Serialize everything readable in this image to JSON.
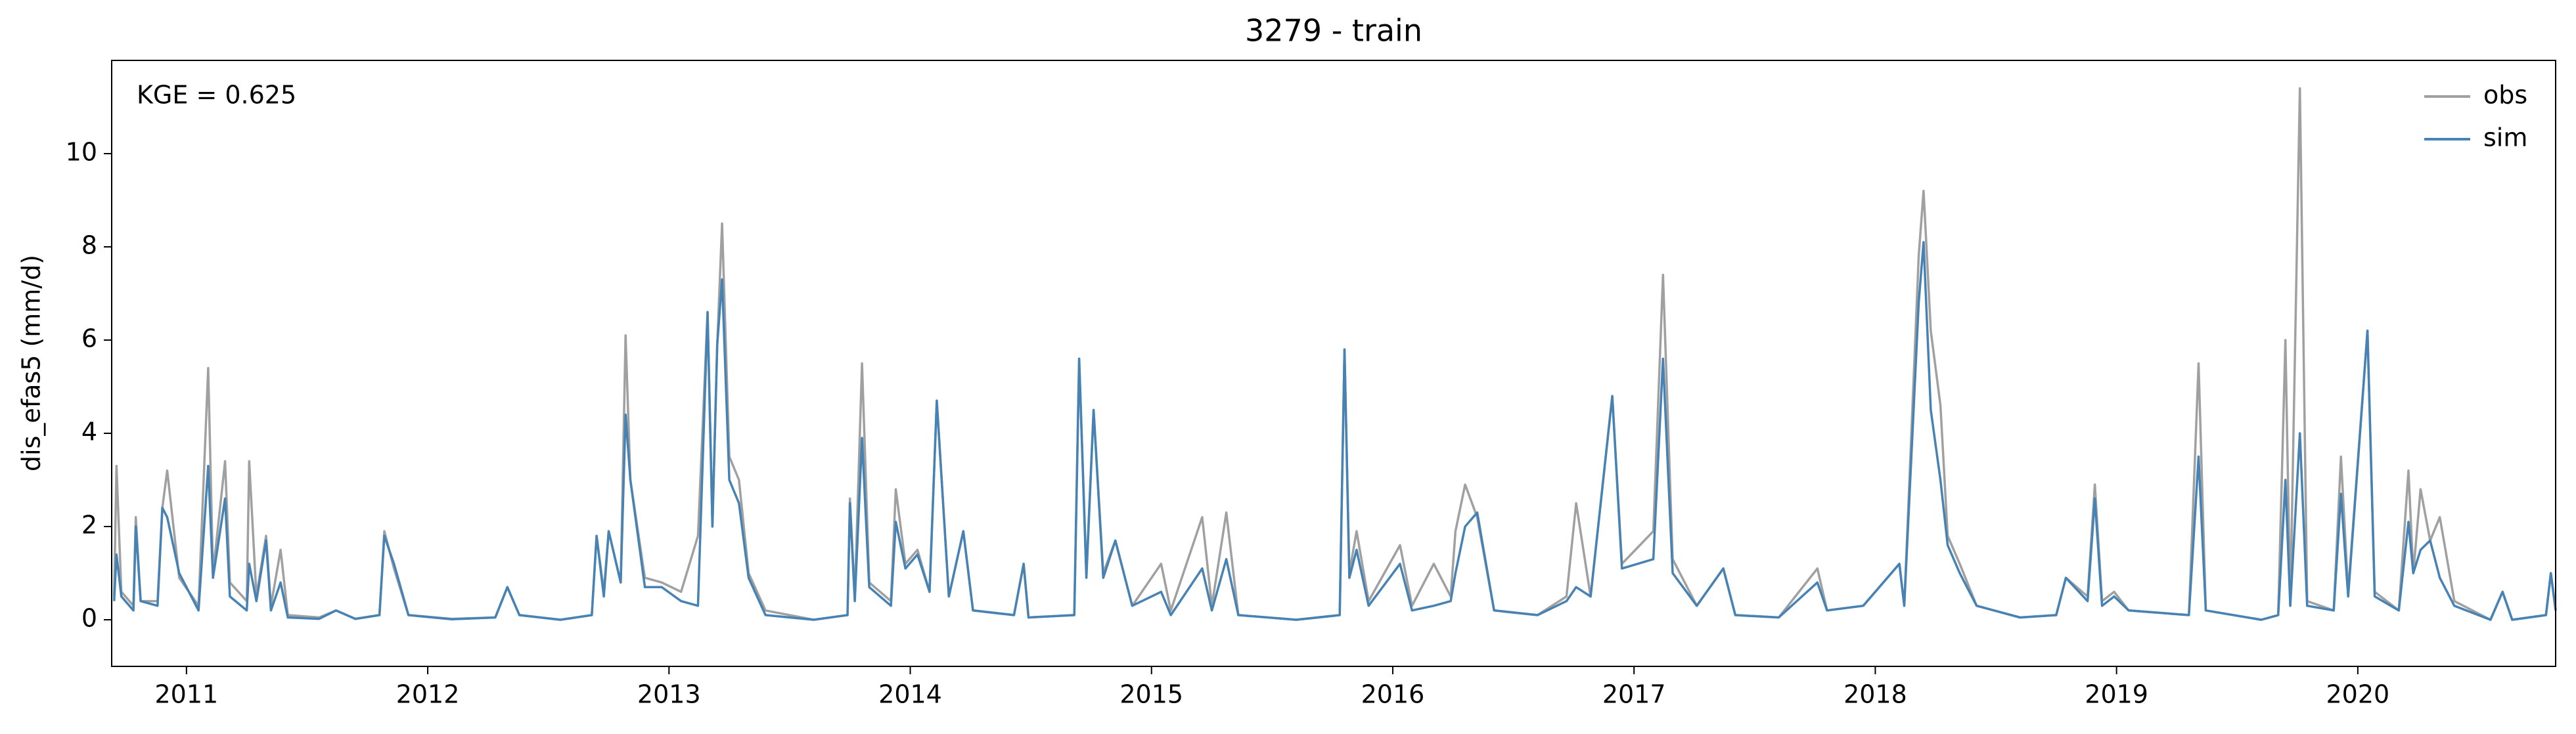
{
  "chart_data": {
    "type": "line",
    "title": "3279 - train",
    "ylabel": "dis_efas5 (mm/d)",
    "annotation": "KGE = 0.625",
    "legend": "upper right",
    "xlim": [
      2010.69,
      2020.82
    ],
    "ylim": [
      -1,
      12
    ],
    "xticks": [
      2011,
      2012,
      2013,
      2014,
      2015,
      2016,
      2017,
      2018,
      2019,
      2020
    ],
    "yticks": [
      0,
      2,
      4,
      6,
      8,
      10
    ],
    "x": [
      2010.7,
      2010.71,
      2010.73,
      2010.78,
      2010.79,
      2010.81,
      2010.88,
      2010.9,
      2010.92,
      2010.97,
      2011.05,
      2011.09,
      2011.11,
      2011.16,
      2011.18,
      2011.25,
      2011.26,
      2011.29,
      2011.33,
      2011.35,
      2011.39,
      2011.42,
      2011.55,
      2011.62,
      2011.7,
      2011.8,
      2011.82,
      2011.86,
      2011.92,
      2012.1,
      2012.28,
      2012.33,
      2012.38,
      2012.55,
      2012.68,
      2012.7,
      2012.73,
      2012.75,
      2012.8,
      2012.82,
      2012.84,
      2012.9,
      2012.97,
      2013.05,
      2013.12,
      2013.16,
      2013.18,
      2013.2,
      2013.22,
      2013.25,
      2013.29,
      2013.33,
      2013.4,
      2013.6,
      2013.74,
      2013.75,
      2013.77,
      2013.8,
      2013.83,
      2013.92,
      2013.94,
      2013.98,
      2014.03,
      2014.08,
      2014.11,
      2014.16,
      2014.22,
      2014.26,
      2014.43,
      2014.47,
      2014.49,
      2014.68,
      2014.7,
      2014.73,
      2014.76,
      2014.8,
      2014.85,
      2014.92,
      2015.04,
      2015.08,
      2015.21,
      2015.25,
      2015.31,
      2015.36,
      2015.6,
      2015.78,
      2015.8,
      2015.82,
      2015.85,
      2015.9,
      2016.03,
      2016.08,
      2016.17,
      2016.24,
      2016.26,
      2016.3,
      2016.35,
      2016.42,
      2016.6,
      2016.72,
      2016.76,
      2016.82,
      2016.91,
      2016.95,
      2017.08,
      2017.12,
      2017.16,
      2017.26,
      2017.37,
      2017.42,
      2017.6,
      2017.76,
      2017.8,
      2017.95,
      2018.1,
      2018.12,
      2018.18,
      2018.2,
      2018.23,
      2018.27,
      2018.3,
      2018.35,
      2018.42,
      2018.6,
      2018.75,
      2018.79,
      2018.88,
      2018.91,
      2018.94,
      2018.99,
      2019.05,
      2019.3,
      2019.34,
      2019.37,
      2019.6,
      2019.67,
      2019.7,
      2019.72,
      2019.76,
      2019.79,
      2019.9,
      2019.93,
      2019.96,
      2020.04,
      2020.07,
      2020.17,
      2020.21,
      2020.23,
      2020.26,
      2020.3,
      2020.34,
      2020.4,
      2020.55,
      2020.6,
      2020.64,
      2020.78,
      2020.8,
      2020.82
    ],
    "series": [
      {
        "name": "obs",
        "color": "#a0a0a0",
        "values": [
          0.5,
          3.3,
          0.6,
          0.3,
          2.2,
          0.4,
          0.4,
          2.4,
          3.2,
          0.9,
          0.3,
          5.4,
          1.0,
          3.4,
          0.8,
          0.4,
          3.4,
          0.5,
          1.8,
          0.3,
          1.5,
          0.1,
          0.05,
          0.2,
          0.02,
          0.1,
          1.9,
          1.1,
          0.1,
          0.02,
          0.05,
          0.7,
          0.1,
          0.0,
          0.1,
          1.8,
          0.6,
          1.9,
          0.8,
          6.1,
          3.0,
          0.9,
          0.8,
          0.6,
          1.8,
          6.6,
          2.0,
          5.9,
          8.5,
          3.5,
          3.0,
          1.0,
          0.2,
          0.0,
          0.1,
          2.6,
          0.5,
          5.5,
          0.8,
          0.4,
          2.8,
          1.2,
          1.5,
          0.6,
          4.7,
          0.5,
          1.9,
          0.2,
          0.1,
          1.2,
          0.05,
          0.1,
          5.6,
          1.0,
          4.5,
          1.0,
          1.7,
          0.3,
          1.2,
          0.2,
          2.2,
          0.3,
          2.3,
          0.1,
          0.0,
          0.1,
          5.8,
          1.0,
          1.9,
          0.4,
          1.6,
          0.3,
          1.2,
          0.5,
          1.9,
          2.9,
          2.2,
          0.2,
          0.1,
          0.5,
          2.5,
          0.5,
          4.8,
          1.2,
          1.9,
          7.4,
          1.3,
          0.3,
          1.1,
          0.1,
          0.05,
          1.1,
          0.2,
          0.3,
          1.2,
          0.3,
          7.8,
          9.2,
          6.2,
          4.6,
          1.8,
          1.2,
          0.3,
          0.05,
          0.1,
          0.9,
          0.5,
          2.9,
          0.4,
          0.6,
          0.2,
          0.1,
          5.5,
          0.2,
          0.0,
          0.1,
          6.0,
          0.3,
          11.4,
          0.4,
          0.2,
          3.5,
          0.6,
          6.2,
          0.6,
          0.2,
          3.2,
          1.0,
          2.8,
          1.7,
          2.2,
          0.4,
          0.0,
          0.6,
          0.0,
          0.1,
          1.0,
          0.2
        ]
      },
      {
        "name": "sim",
        "color": "#4682b4",
        "values": [
          0.4,
          1.4,
          0.5,
          0.2,
          2.0,
          0.4,
          0.3,
          2.4,
          2.2,
          1.0,
          0.2,
          3.3,
          0.9,
          2.6,
          0.5,
          0.2,
          1.2,
          0.4,
          1.7,
          0.2,
          0.8,
          0.05,
          0.02,
          0.2,
          0.02,
          0.1,
          1.8,
          1.2,
          0.1,
          0.01,
          0.05,
          0.7,
          0.1,
          0.0,
          0.1,
          1.8,
          0.5,
          1.9,
          0.8,
          4.4,
          3.0,
          0.7,
          0.7,
          0.4,
          0.3,
          6.6,
          2.0,
          5.9,
          7.3,
          3.0,
          2.5,
          0.9,
          0.1,
          0.0,
          0.1,
          2.5,
          0.4,
          3.9,
          0.7,
          0.3,
          2.1,
          1.1,
          1.4,
          0.6,
          4.7,
          0.5,
          1.9,
          0.2,
          0.1,
          1.2,
          0.05,
          0.1,
          5.6,
          0.9,
          4.5,
          0.9,
          1.7,
          0.3,
          0.6,
          0.1,
          1.1,
          0.2,
          1.3,
          0.1,
          0.0,
          0.1,
          5.8,
          0.9,
          1.5,
          0.3,
          1.2,
          0.2,
          0.3,
          0.4,
          1.0,
          2.0,
          2.3,
          0.2,
          0.1,
          0.4,
          0.7,
          0.5,
          4.8,
          1.1,
          1.3,
          5.6,
          1.0,
          0.3,
          1.1,
          0.1,
          0.05,
          0.8,
          0.2,
          0.3,
          1.2,
          0.3,
          6.8,
          8.1,
          4.5,
          3.0,
          1.6,
          1.0,
          0.3,
          0.05,
          0.1,
          0.9,
          0.4,
          2.6,
          0.3,
          0.5,
          0.2,
          0.1,
          3.5,
          0.2,
          0.0,
          0.1,
          3.0,
          0.3,
          4.0,
          0.3,
          0.2,
          2.7,
          0.5,
          6.2,
          0.5,
          0.2,
          2.1,
          1.0,
          1.5,
          1.7,
          0.9,
          0.3,
          0.0,
          0.6,
          0.0,
          0.1,
          1.0,
          0.2
        ]
      }
    ]
  }
}
